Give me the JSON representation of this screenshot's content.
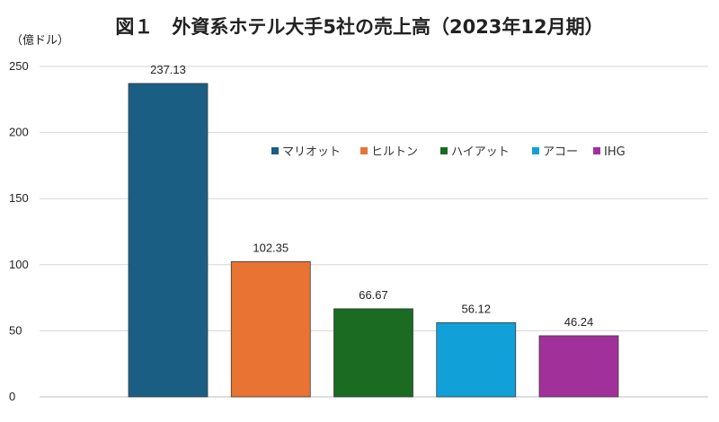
{
  "chart_data": {
    "type": "bar",
    "title": "図１　外資系ホテル大手5社の売上高（2023年12月期）",
    "unit_label": "（億ドル）",
    "categories": [
      "マリオット",
      "ヒルトン",
      "ハイアット",
      "アコー",
      "IHG"
    ],
    "values": [
      237.13,
      102.35,
      66.67,
      56.12,
      46.24
    ],
    "data_labels": [
      "237.13",
      "102.35",
      "66.67",
      "56.12",
      "46.24"
    ],
    "colors": [
      "#1a5e84",
      "#e97333",
      "#1b6b23",
      "#12a0d8",
      "#a2309a"
    ],
    "ylim": [
      0,
      250
    ],
    "yticks": [
      0,
      50,
      100,
      150,
      200,
      250
    ],
    "ytick_labels": [
      "0",
      "50",
      "100",
      "150",
      "200",
      "250"
    ],
    "grid": true,
    "legend_position": "inside-top-right"
  }
}
